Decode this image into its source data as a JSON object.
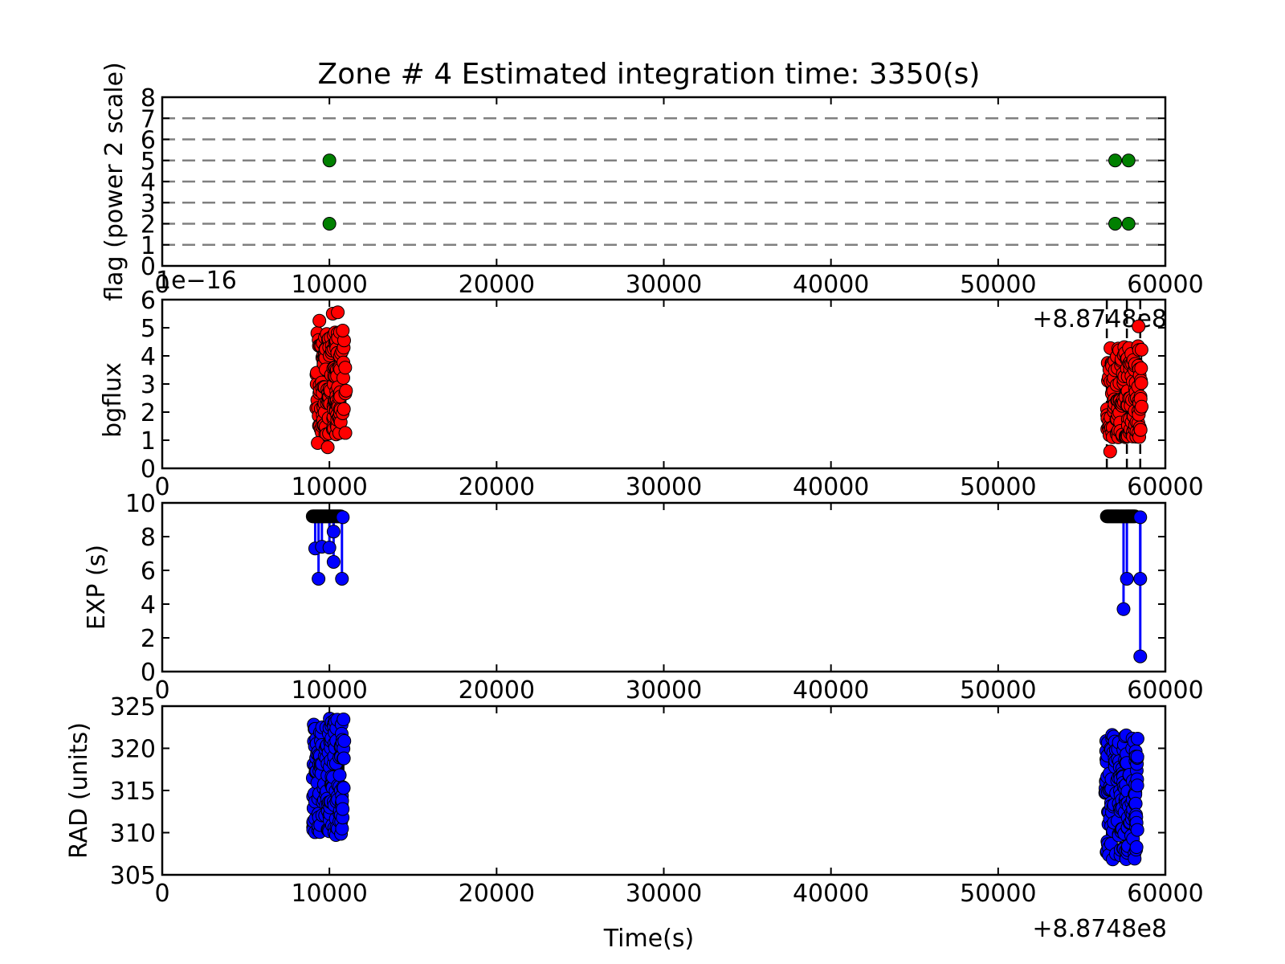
{
  "figure": {
    "title": "Zone # 4 Estimated integration time: 3350(s)",
    "xlabel": "Time(s)",
    "x_offset_label": "+8.8748e8"
  },
  "chart_data": [
    {
      "type": "scatter",
      "panel": "flag",
      "ylabel": "flag (power 2 scale)",
      "xlim": [
        0,
        60000
      ],
      "ylim": [
        0,
        8
      ],
      "x_ticks": [
        "0",
        "10000",
        "20000",
        "30000",
        "40000",
        "50000",
        "60000"
      ],
      "y_ticks": [
        "0",
        "1",
        "2",
        "3",
        "4",
        "5",
        "6",
        "7",
        "8"
      ],
      "x_offset_label": "+8.8748e8",
      "hlines": [
        1,
        2,
        3,
        4,
        5,
        6,
        7
      ],
      "colors": {
        "marker": "#008000",
        "hline": "#808080"
      },
      "points": [
        [
          10000,
          5
        ],
        [
          10000,
          2
        ],
        [
          57000,
          5
        ],
        [
          57800,
          5
        ],
        [
          57000,
          2
        ],
        [
          57800,
          2
        ]
      ]
    },
    {
      "type": "scatter",
      "panel": "bgflux",
      "ylabel": "bgflux",
      "scale_label": "1e−16",
      "xlim": [
        0,
        60000
      ],
      "ylim": [
        0,
        6
      ],
      "x_ticks": [
        "0",
        "10000",
        "20000",
        "30000",
        "40000",
        "50000",
        "60000"
      ],
      "y_ticks": [
        "0",
        "1",
        "2",
        "3",
        "4",
        "5",
        "6"
      ],
      "colors": {
        "marker": "#ff0000"
      },
      "vlines": [
        56500,
        57700,
        58500
      ],
      "clusters": [
        {
          "x_range": [
            9200,
            11000
          ],
          "y_min": 0.7,
          "y_max": 5.55
        },
        {
          "x_range": [
            56500,
            58600
          ],
          "y_min": 0.6,
          "y_max": 5.05
        }
      ],
      "highlights": [
        [
          9400,
          5.25
        ],
        [
          10200,
          5.5
        ],
        [
          10500,
          5.55
        ],
        [
          10800,
          4.9
        ],
        [
          9300,
          0.9
        ],
        [
          9900,
          0.75
        ],
        [
          58400,
          5.05
        ],
        [
          56700,
          0.6
        ]
      ]
    },
    {
      "type": "line",
      "panel": "EXP",
      "ylabel": "EXP (s)",
      "xlim": [
        0,
        60000
      ],
      "ylim": [
        0,
        10
      ],
      "x_ticks": [
        "0",
        "10000",
        "20000",
        "30000",
        "40000",
        "50000",
        "60000"
      ],
      "y_ticks": [
        "0",
        "2",
        "4",
        "6",
        "8",
        "10"
      ],
      "colors": {
        "line": "#0000ff",
        "top_marker": "#000000",
        "marker": "#0000ff"
      },
      "top_value": 9.2,
      "top_ranges": [
        [
          9000,
          10700
        ],
        [
          56500,
          58200
        ]
      ],
      "dips": [
        [
          9150,
          7.3
        ],
        [
          9350,
          5.5
        ],
        [
          9550,
          7.4
        ],
        [
          10000,
          7.35
        ],
        [
          10250,
          8.3
        ],
        [
          10250,
          6.5
        ],
        [
          10750,
          5.5
        ],
        [
          10800,
          9.15
        ],
        [
          57500,
          3.7
        ],
        [
          57700,
          5.5
        ],
        [
          58500,
          5.5
        ],
        [
          58500,
          0.9
        ],
        [
          58500,
          9.15
        ]
      ]
    },
    {
      "type": "scatter",
      "panel": "RAD",
      "ylabel": "RAD (units)",
      "xlim": [
        0,
        60000
      ],
      "ylim": [
        305,
        325
      ],
      "x_ticks": [
        "0",
        "10000",
        "20000",
        "30000",
        "40000",
        "50000",
        "60000"
      ],
      "y_ticks": [
        "305",
        "310",
        "315",
        "320",
        "325"
      ],
      "x_offset_label": "+8.8748e8",
      "colors": {
        "marker": "#0000ff"
      },
      "clusters": [
        {
          "x_range": [
            9000,
            10900
          ],
          "y_min": 309.7,
          "y_max": 324.0
        },
        {
          "x_range": [
            56400,
            58400
          ],
          "y_min": 306.8,
          "y_max": 322.0
        }
      ]
    }
  ]
}
